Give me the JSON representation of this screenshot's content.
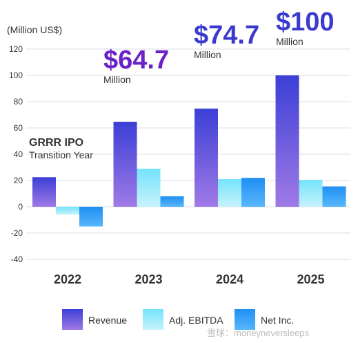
{
  "chart_data": {
    "type": "bar",
    "ylabel": "(Million US$)",
    "ylim": [
      -40,
      120
    ],
    "yticks": [
      120,
      100,
      80,
      60,
      40,
      20,
      0,
      -20,
      -40
    ],
    "grid": true,
    "legend": "bottom",
    "categories": [
      "2022",
      "2023",
      "2024",
      "2025"
    ],
    "series": [
      {
        "name": "Revenue",
        "values": [
          22.5,
          64.7,
          74.7,
          100
        ],
        "color_top": "#3b3fd6",
        "color_bottom": "#a07ae6"
      },
      {
        "name": "Adj. EBITDA",
        "values": [
          -6,
          29,
          21,
          20.5
        ],
        "color_top": "#74e3fb",
        "color_bottom": "#c7f3fd"
      },
      {
        "name": "Net Inc.",
        "values": [
          -15,
          8,
          22,
          15.5
        ],
        "color_top": "#1f8ff3",
        "color_bottom": "#58b6fb"
      }
    ],
    "annotations": [
      {
        "category": "2022",
        "title": "GRRR IPO",
        "subtitle": "Transition Year"
      },
      {
        "category": "2023",
        "value": "$64.7",
        "unit": "Million",
        "color": "#6a22c7"
      },
      {
        "category": "2024",
        "value": "$74.7",
        "unit": "Million",
        "color": "#3a3ad0"
      },
      {
        "category": "2025",
        "value": "$100",
        "unit": "Million",
        "color": "#3a3ad0"
      }
    ]
  },
  "watermark": "雪球：moneyneversleeps"
}
